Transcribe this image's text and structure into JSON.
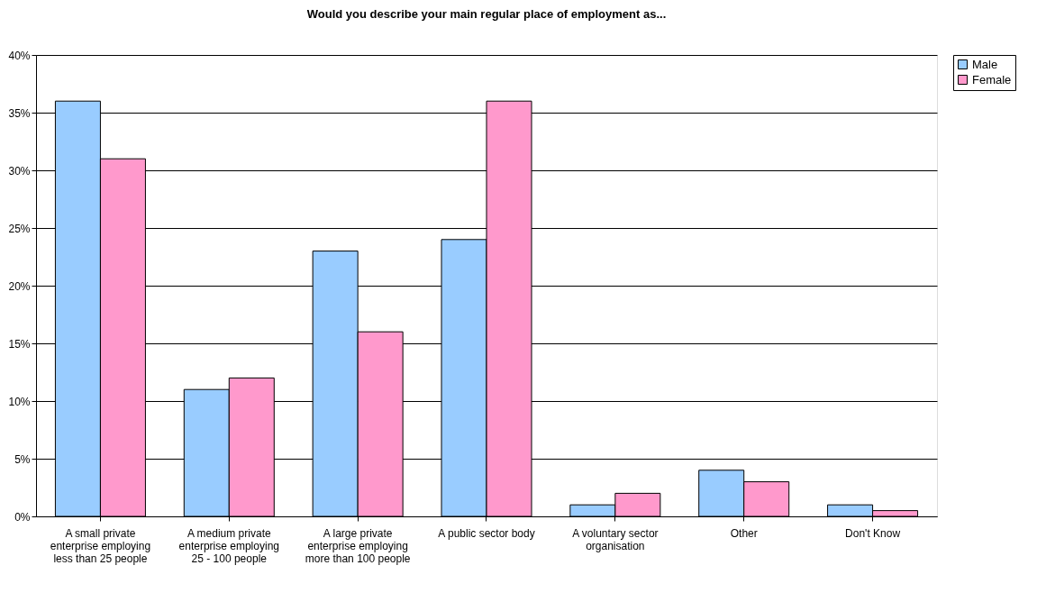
{
  "chart_data": {
    "type": "bar",
    "title": "Would you describe your main regular place of employment as...",
    "categories": [
      "A small private enterprise employing less than 25 people",
      "A medium private enterprise employing 25 - 100 people",
      "A large private enterprise employing more than 100 people",
      "A public sector body",
      "A voluntary sector organisation",
      "Other",
      "Don't Know"
    ],
    "series": [
      {
        "name": "Male",
        "color": "#99ccff",
        "values": [
          36,
          11,
          23,
          24,
          1,
          4,
          1
        ]
      },
      {
        "name": "Female",
        "color": "#ff99cc",
        "values": [
          31,
          12,
          16,
          36,
          2,
          3,
          0.5
        ]
      }
    ],
    "ylim": [
      0,
      40
    ],
    "yticks": [
      {
        "value": 0,
        "label": "0%"
      },
      {
        "value": 5,
        "label": "5%"
      },
      {
        "value": 10,
        "label": "10%"
      },
      {
        "value": 15,
        "label": "15%"
      },
      {
        "value": 20,
        "label": "20%"
      },
      {
        "value": 25,
        "label": "25%"
      },
      {
        "value": 30,
        "label": "30%"
      },
      {
        "value": 35,
        "label": "35%"
      },
      {
        "value": 40,
        "label": "40%"
      }
    ],
    "grid": "y",
    "legend": "right"
  }
}
